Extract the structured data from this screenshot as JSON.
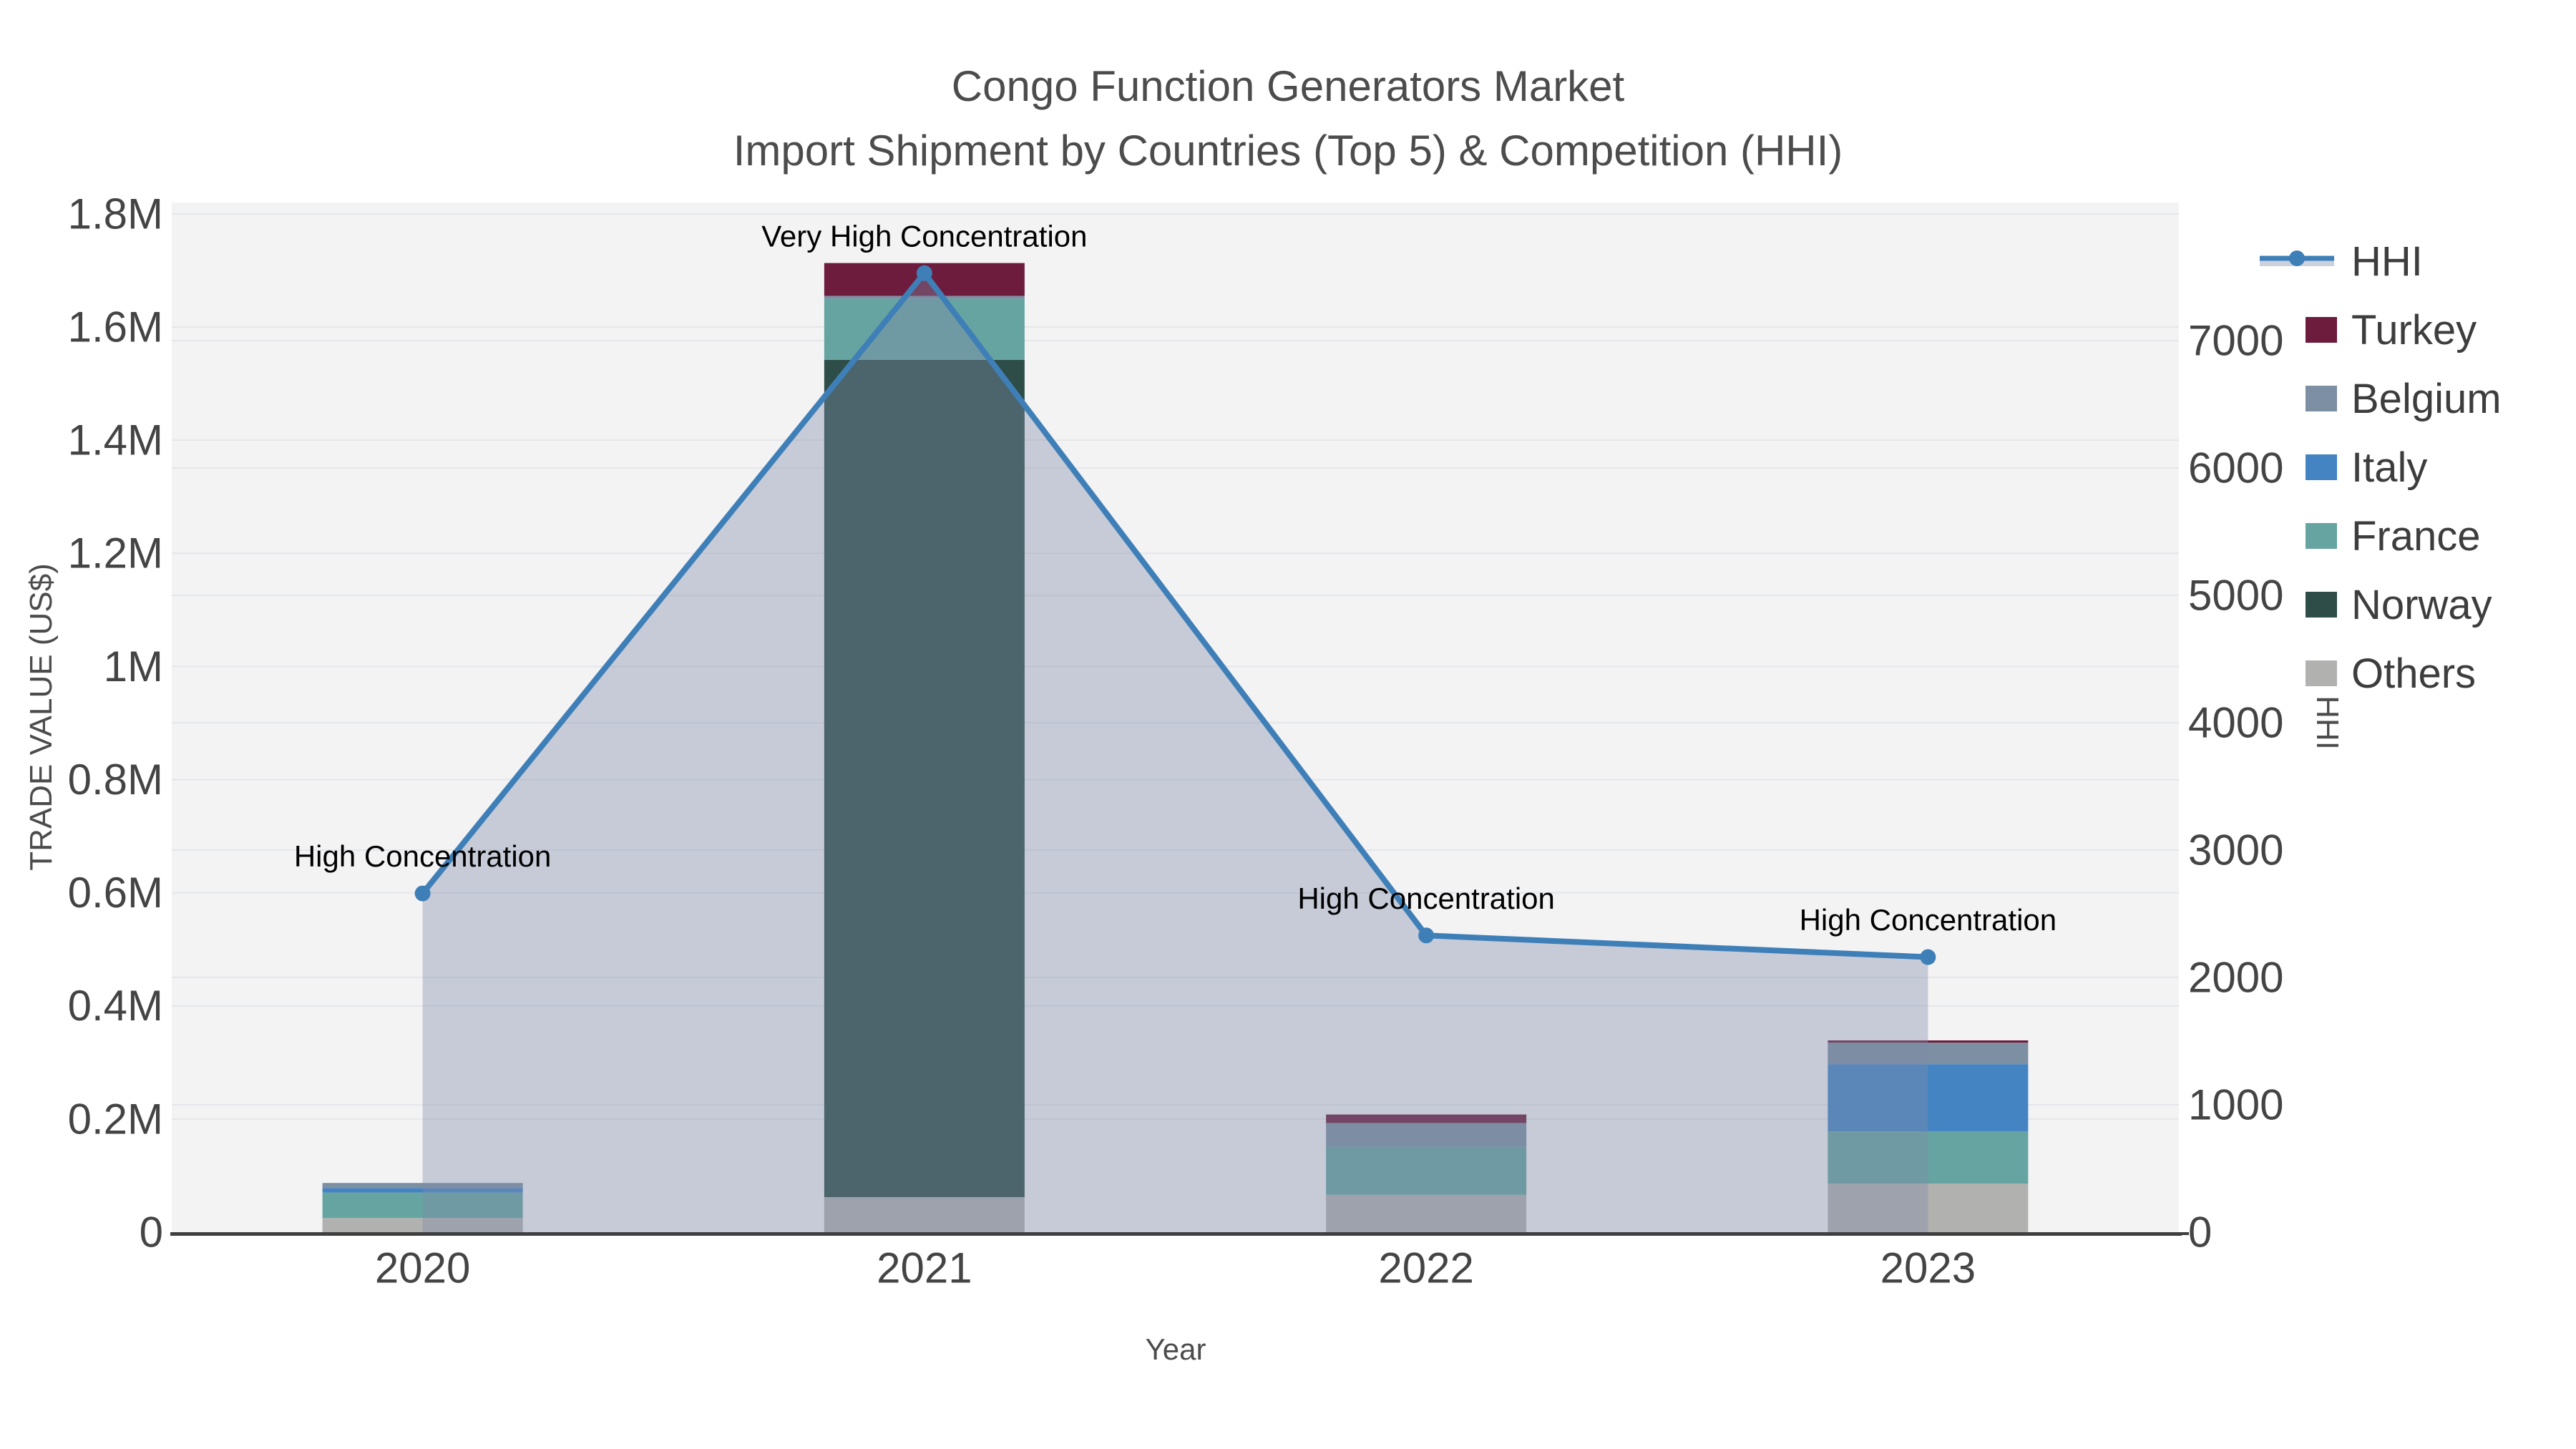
{
  "title": {
    "line1": "Congo Function Generators Market",
    "line2": "Import Shipment by Countries (Top 5) & Competition (HHI)"
  },
  "axes": {
    "x": {
      "title": "Year",
      "categories": [
        "2020",
        "2021",
        "2022",
        "2023"
      ]
    },
    "y_left": {
      "title": "TRADE VALUE (US$)",
      "tick_labels": [
        "0",
        "0.2M",
        "0.4M",
        "0.6M",
        "0.8M",
        "1M",
        "1.2M",
        "1.4M",
        "1.6M",
        "1.8M"
      ],
      "tick_values": [
        0,
        200000,
        400000,
        600000,
        800000,
        1000000,
        1200000,
        1400000,
        1600000,
        1800000
      ],
      "range": [
        0,
        1820000
      ]
    },
    "y_right": {
      "title": "HHI",
      "tick_labels": [
        "0",
        "1000",
        "2000",
        "3000",
        "4000",
        "5000",
        "6000",
        "7000"
      ],
      "tick_values": [
        0,
        1000,
        2000,
        3000,
        4000,
        5000,
        6000,
        7000
      ],
      "range": [
        0,
        8085
      ]
    }
  },
  "legend": {
    "items": [
      {
        "label": "HHI",
        "type": "line",
        "color": "#3f7fb8",
        "band_color": "#ccd2dc"
      },
      {
        "label": "Turkey",
        "type": "swatch",
        "color": "#6e1c3d"
      },
      {
        "label": "Belgium",
        "type": "swatch",
        "color": "#7d8fa2"
      },
      {
        "label": "Italy",
        "type": "swatch",
        "color": "#4484c2"
      },
      {
        "label": "France",
        "type": "swatch",
        "color": "#66a4a1"
      },
      {
        "label": "Norway",
        "type": "swatch",
        "color": "#2e4d48"
      },
      {
        "label": "Others",
        "type": "swatch",
        "color": "#b1b1b0"
      }
    ]
  },
  "chart_data": {
    "type": "bar+line dual-axis",
    "categories": [
      "2020",
      "2021",
      "2022",
      "2023"
    ],
    "bar_stack_order_bottom_to_top": [
      "Others",
      "Norway",
      "France",
      "Italy",
      "Belgium",
      "Turkey"
    ],
    "series": [
      {
        "name": "Others",
        "color": "#b1b1b0",
        "values": [
          25000,
          62000,
          66000,
          86000
        ]
      },
      {
        "name": "Norway",
        "color": "#2e4d48",
        "values": [
          0,
          1480000,
          0,
          0
        ]
      },
      {
        "name": "France",
        "color": "#66a4a1",
        "values": [
          45000,
          108000,
          85000,
          92000
        ]
      },
      {
        "name": "Italy",
        "color": "#4484c2",
        "values": [
          8000,
          0,
          0,
          119000
        ]
      },
      {
        "name": "Belgium",
        "color": "#7d8fa2",
        "values": [
          9000,
          5000,
          42000,
          38000
        ]
      },
      {
        "name": "Turkey",
        "color": "#6e1c3d",
        "values": [
          0,
          58000,
          15000,
          4000
        ]
      }
    ],
    "line_series": {
      "name": "HHI",
      "axis": "right",
      "color": "#3f7fb8",
      "area_fill": "rgba(127,140,168,0.38)",
      "values": [
        2660,
        7530,
        2330,
        2160
      ]
    },
    "annotations": [
      {
        "category_index": 0,
        "text": "High Concentration"
      },
      {
        "category_index": 1,
        "text": "Very High Concentration"
      },
      {
        "category_index": 2,
        "text": "High Concentration"
      },
      {
        "category_index": 3,
        "text": "High Concentration"
      }
    ],
    "xlabel": "Year",
    "ylabel_left": "TRADE VALUE (US$)",
    "ylabel_right": "HHI",
    "grid": true,
    "legend_position": "right"
  },
  "style": {
    "plot_bg": "#f3f3f4",
    "gridline_color": "#e4e6e9",
    "axis_line_color": "#3f3f3f",
    "tick_color": "#444444",
    "annotation_color": "#000000"
  }
}
